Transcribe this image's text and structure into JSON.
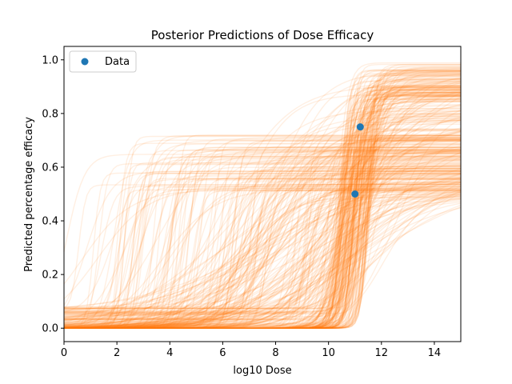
{
  "chart_data": {
    "type": "line",
    "title": "Posterior Predictions of Dose Efficacy",
    "xlabel": "log10 Dose",
    "ylabel": "Predicted percentage efficacy",
    "xlim": [
      0,
      15
    ],
    "ylim": [
      -0.05,
      1.05
    ],
    "xticks": [
      0,
      2,
      4,
      6,
      8,
      10,
      12,
      14
    ],
    "yticks": [
      0.0,
      0.2,
      0.4,
      0.6,
      0.8,
      1.0
    ],
    "xtick_labels": [
      "0",
      "2",
      "4",
      "6",
      "8",
      "10",
      "12",
      "14"
    ],
    "ytick_labels": [
      "0.0",
      "0.2",
      "0.4",
      "0.6",
      "0.8",
      "1.0"
    ],
    "grid": false,
    "legend": {
      "placement": "upper-left",
      "entries": [
        "Data"
      ]
    },
    "series": [
      {
        "name": "Data",
        "kind": "scatter",
        "color": "#1f77b4",
        "x": [
          11.0,
          11.2
        ],
        "y": [
          0.5,
          0.75
        ]
      },
      {
        "kind": "posterior-curves",
        "color": "#ff7f0e",
        "alpha": 0.12,
        "curve_count": 400,
        "upper_asymptote_range": [
          0.48,
          0.99
        ],
        "midpoint_range": [
          0.0,
          12.5
        ],
        "curve_family": "logistic"
      }
    ]
  }
}
